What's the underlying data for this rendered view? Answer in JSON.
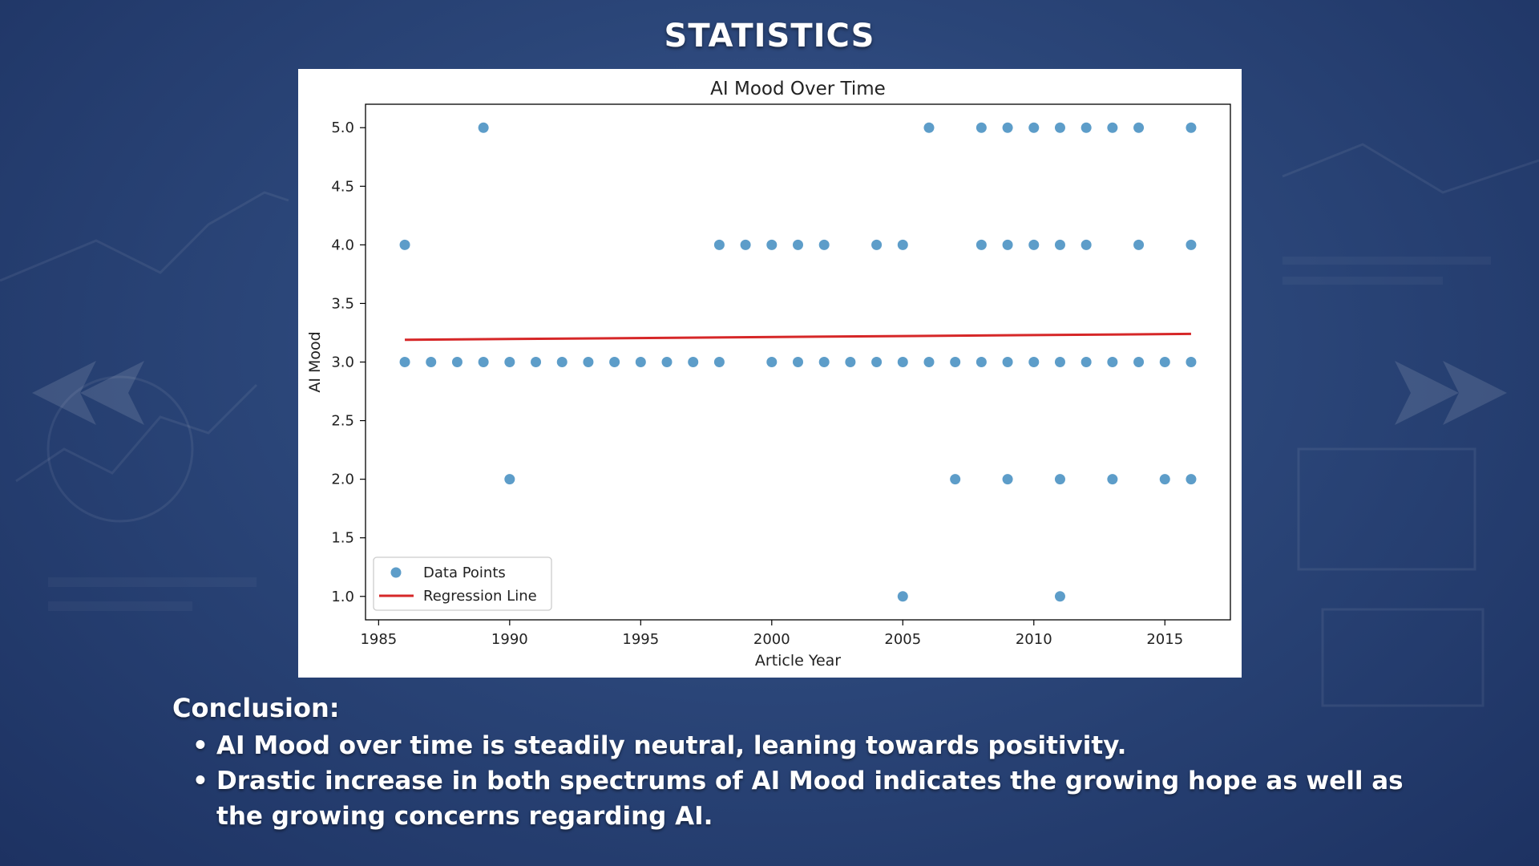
{
  "page": {
    "title": "STATISTICS"
  },
  "chart_data": {
    "type": "scatter",
    "title": "AI Mood Over Time",
    "xlabel": "Article Year",
    "ylabel": "AI Mood",
    "xlim": [
      1984.5,
      2017.5
    ],
    "ylim": [
      0.8,
      5.2
    ],
    "xticks": [
      "1985",
      "1990",
      "1995",
      "2000",
      "2005",
      "2010",
      "2015"
    ],
    "xtick_values": [
      1985,
      1990,
      1995,
      2000,
      2005,
      2010,
      2015
    ],
    "yticks": [
      "1.0",
      "1.5",
      "2.0",
      "2.5",
      "3.0",
      "3.5",
      "4.0",
      "4.5",
      "5.0"
    ],
    "ytick_values": [
      1.0,
      1.5,
      2.0,
      2.5,
      3.0,
      3.5,
      4.0,
      4.5,
      5.0
    ],
    "grid": false,
    "legend_position": "lower-left",
    "series": [
      {
        "name": "Data Points",
        "kind": "scatter",
        "color": "#1f77b4",
        "points": [
          [
            1986,
            3
          ],
          [
            1986,
            4
          ],
          [
            1987,
            3
          ],
          [
            1988,
            3
          ],
          [
            1989,
            3
          ],
          [
            1989,
            5
          ],
          [
            1990,
            3
          ],
          [
            1990,
            2
          ],
          [
            1991,
            3
          ],
          [
            1992,
            3
          ],
          [
            1993,
            3
          ],
          [
            1994,
            3
          ],
          [
            1995,
            3
          ],
          [
            1996,
            3
          ],
          [
            1997,
            3
          ],
          [
            1998,
            3
          ],
          [
            1998,
            4
          ],
          [
            1999,
            4
          ],
          [
            2000,
            3
          ],
          [
            2000,
            4
          ],
          [
            2001,
            3
          ],
          [
            2001,
            4
          ],
          [
            2002,
            3
          ],
          [
            2002,
            4
          ],
          [
            2003,
            3
          ],
          [
            2004,
            3
          ],
          [
            2004,
            4
          ],
          [
            2005,
            3
          ],
          [
            2005,
            4
          ],
          [
            2005,
            1
          ],
          [
            2006,
            3
          ],
          [
            2006,
            5
          ],
          [
            2007,
            3
          ],
          [
            2007,
            2
          ],
          [
            2008,
            3
          ],
          [
            2008,
            4
          ],
          [
            2008,
            5
          ],
          [
            2009,
            3
          ],
          [
            2009,
            4
          ],
          [
            2009,
            5
          ],
          [
            2009,
            2
          ],
          [
            2010,
            3
          ],
          [
            2010,
            4
          ],
          [
            2010,
            5
          ],
          [
            2011,
            3
          ],
          [
            2011,
            4
          ],
          [
            2011,
            5
          ],
          [
            2011,
            2
          ],
          [
            2011,
            1
          ],
          [
            2012,
            3
          ],
          [
            2012,
            4
          ],
          [
            2012,
            5
          ],
          [
            2013,
            3
          ],
          [
            2013,
            5
          ],
          [
            2013,
            2
          ],
          [
            2014,
            3
          ],
          [
            2014,
            4
          ],
          [
            2014,
            5
          ],
          [
            2015,
            3
          ],
          [
            2015,
            2
          ],
          [
            2016,
            3
          ],
          [
            2016,
            4
          ],
          [
            2016,
            5
          ],
          [
            2016,
            2
          ]
        ]
      },
      {
        "name": "Regression Line",
        "kind": "line",
        "color": "#d62728",
        "points": [
          [
            1986,
            3.19
          ],
          [
            2016,
            3.24
          ]
        ]
      }
    ]
  },
  "conclusion": {
    "heading": "Conclusion:",
    "bullets": [
      "AI Mood over time is steadily neutral, leaning towards positivity.",
      "Drastic increase in both spectrums of AI Mood indicates the growing hope as well as the growing concerns regarding AI."
    ]
  },
  "colors": {
    "background": "#2b4679",
    "panel": "#ffffff",
    "scatter": "#1f77b4",
    "regression": "#d62728"
  }
}
